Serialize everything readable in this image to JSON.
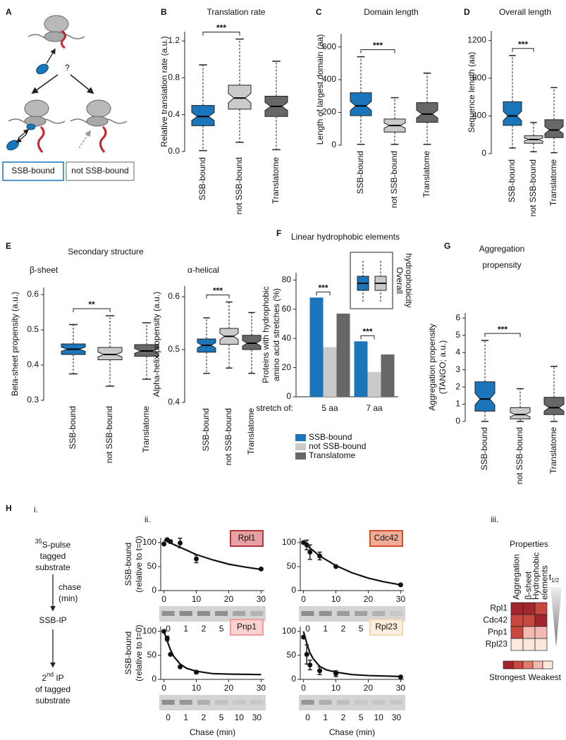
{
  "panel_labels": {
    "a": "A",
    "b": "B",
    "c": "C",
    "d": "D",
    "e": "E",
    "f": "F",
    "g": "G",
    "h": "H"
  },
  "panel_a": {
    "question": "?",
    "legend": [
      "SSB-bound",
      "not SSB-bound"
    ]
  },
  "panel_e": {
    "title": "Secondary structure"
  },
  "panel_h": {
    "steps": [
      "i.",
      "ii.",
      "iii."
    ],
    "protocol": {
      "pulse_sup": "35",
      "pulse": "S-pulse",
      "pulse_lines": [
        "tagged",
        "substrate"
      ],
      "chase": [
        "chase",
        "(min)"
      ],
      "ip": "SSB-IP",
      "second_pre": "2",
      "second_sup": "nd",
      "second": " IP",
      "second_lines": [
        "of tagged",
        "substrate"
      ]
    }
  },
  "chart_data": [
    {
      "type": "box",
      "title": [
        "Translation rate"
      ],
      "y_label": [
        "Relative translation rate (a.u.)"
      ],
      "categories": [
        "SSB-bound",
        "not SSB-bound",
        "Translatome"
      ],
      "colors": [
        "#1b75bb",
        "#cacaca",
        "#676767"
      ],
      "notch": true,
      "boxes": [
        {
          "low": 0.01,
          "q1": 0.28,
          "median": 0.38,
          "q3": 0.5,
          "high": 0.94
        },
        {
          "low": 0.1,
          "q1": 0.46,
          "median": 0.58,
          "q3": 0.72,
          "high": 1.22
        },
        {
          "low": 0.02,
          "q1": 0.38,
          "median": 0.49,
          "q3": 0.6,
          "high": 0.98
        }
      ],
      "ylim": [
        0,
        1.3
      ],
      "yticks": [
        {
          "value": 0,
          "label": "0.0"
        },
        0.4,
        0.8,
        1.2
      ],
      "significance": [
        {
          "label": "***",
          "pair": [
            0,
            1
          ]
        }
      ]
    },
    {
      "type": "box",
      "title": [
        "Domain length"
      ],
      "y_label": [
        "Length of largest domain (aa)"
      ],
      "categories": [
        "SSB-bound",
        "not SSB-bound",
        "Translatome"
      ],
      "colors": [
        "#1b75bb",
        "#cacaca",
        "#676767"
      ],
      "notch": true,
      "boxes": [
        {
          "low": 5,
          "q1": 180,
          "median": 240,
          "q3": 320,
          "high": 540
        },
        {
          "low": 5,
          "q1": 80,
          "median": 120,
          "q3": 160,
          "high": 290
        },
        {
          "low": 5,
          "q1": 140,
          "median": 190,
          "q3": 260,
          "high": 440
        }
      ],
      "ylim": [
        0,
        680
      ],
      "yticks": [
        0,
        200,
        400,
        600
      ],
      "significance": [
        {
          "label": "***",
          "pair": [
            0,
            1
          ]
        }
      ]
    },
    {
      "type": "box",
      "title": [
        "Overall length"
      ],
      "y_label": [
        "Sequence length (aa)"
      ],
      "categories": [
        "SSB-bound",
        "not SSB-bound",
        "Translatome"
      ],
      "colors": [
        "#1b75bb",
        "#cacaca",
        "#676767"
      ],
      "notch": true,
      "boxes": [
        {
          "low": 60,
          "q1": 300,
          "median": 400,
          "q3": 550,
          "high": 1040
        },
        {
          "low": 20,
          "q1": 110,
          "median": 150,
          "q3": 190,
          "high": 330
        },
        {
          "low": 10,
          "q1": 170,
          "median": 250,
          "q3": 360,
          "high": 700
        }
      ],
      "ylim": [
        0,
        1300
      ],
      "yticks": [
        0,
        400,
        800,
        1200
      ],
      "significance": [
        {
          "label": "***",
          "pair": [
            0,
            1
          ]
        }
      ]
    },
    {
      "type": "box",
      "title": [
        "β-sheet"
      ],
      "y_label": [
        "Beta-sheet propensity (a.u.)"
      ],
      "categories": [
        "SSB-bound",
        "not SSB-bound",
        "Translatome"
      ],
      "colors": [
        "#1b75bb",
        "#cacaca",
        "#676767"
      ],
      "notch": true,
      "boxes": [
        {
          "low": 0.375,
          "q1": 0.43,
          "median": 0.445,
          "q3": 0.46,
          "high": 0.515
        },
        {
          "low": 0.34,
          "q1": 0.415,
          "median": 0.43,
          "q3": 0.45,
          "high": 0.54
        },
        {
          "low": 0.36,
          "q1": 0.425,
          "median": 0.44,
          "q3": 0.458,
          "high": 0.52
        }
      ],
      "ylim": [
        0.3,
        0.62
      ],
      "yticks": [
        0.3,
        0.4,
        0.5,
        0.6
      ],
      "significance": [
        {
          "label": "**",
          "pair": [
            0,
            1
          ]
        }
      ]
    },
    {
      "type": "box",
      "title": [
        "α-helical"
      ],
      "y_label": [
        "Alpha-helix propensity (a.u.)"
      ],
      "categories": [
        "SSB-bound",
        "not SSB-bound",
        "Translatome"
      ],
      "colors": [
        "#1b75bb",
        "#cacaca",
        "#676767"
      ],
      "notch": true,
      "boxes": [
        {
          "low": 0.455,
          "q1": 0.495,
          "median": 0.508,
          "q3": 0.52,
          "high": 0.56
        },
        {
          "low": 0.465,
          "q1": 0.51,
          "median": 0.525,
          "q3": 0.54,
          "high": 0.59
        },
        {
          "low": 0.455,
          "q1": 0.5,
          "median": 0.512,
          "q3": 0.527,
          "high": 0.57
        }
      ],
      "ylim": [
        0.4,
        0.62
      ],
      "yticks": [
        0.4,
        0.5,
        0.6
      ],
      "significance": [
        {
          "label": "***",
          "pair": [
            0,
            1
          ]
        }
      ]
    },
    {
      "type": "bar",
      "title": [
        "Linear hydrophobic elements"
      ],
      "y_label": [
        "Proteins with hydrophobic",
        "amino acid stretches (%)"
      ],
      "x_label": "stretch of:",
      "categories": [
        "5 aa",
        "7 aa"
      ],
      "series": [
        {
          "name": "SSB-bound",
          "color": "#1b75bb",
          "values": [
            68,
            38
          ]
        },
        {
          "name": "not SSB-bound",
          "color": "#cacaca",
          "values": [
            34,
            17
          ]
        },
        {
          "name": "Translatome",
          "color": "#676767",
          "values": [
            57,
            29
          ]
        }
      ],
      "ylim": [
        0,
        85
      ],
      "yticks": [
        0,
        20,
        40,
        60,
        80
      ],
      "significance": [
        {
          "label": "***",
          "category": 0,
          "pair": [
            0,
            1
          ]
        },
        {
          "label": "***",
          "category": 1,
          "pair": [
            0,
            1
          ]
        }
      ],
      "inset_label": [
        "Overall",
        "hydrophobicity"
      ]
    },
    {
      "type": "box",
      "title": [
        "Aggregation",
        "propensity"
      ],
      "y_label": [
        "Aggregation propensity",
        "(TANGO; a.u.)"
      ],
      "categories": [
        "SSB-bound",
        "not SSB-bound",
        "Translatome"
      ],
      "colors": [
        "#1b75bb",
        "#cacaca",
        "#676767"
      ],
      "notch": true,
      "boxes": [
        {
          "low": 0,
          "q1": 0.6,
          "median": 1.3,
          "q3": 2.3,
          "high": 4.7
        },
        {
          "low": 0,
          "q1": 0.15,
          "median": 0.4,
          "q3": 0.8,
          "high": 1.9
        },
        {
          "low": 0,
          "q1": 0.4,
          "median": 0.8,
          "q3": 1.4,
          "high": 3.2
        }
      ],
      "ylim": [
        0,
        6.3
      ],
      "yticks": [
        0,
        1,
        2,
        3,
        4,
        5,
        6
      ],
      "significance": [
        {
          "label": "***",
          "pair": [
            0,
            1
          ]
        }
      ]
    },
    {
      "type": "decay",
      "label": "Rpl1",
      "label_fill": "#e7a1a4",
      "label_stroke": "#b8333b",
      "y_label": [
        "SSB-bound",
        "(relative to t=0)"
      ],
      "xlim": [
        -1,
        31
      ],
      "ylim": [
        0,
        110
      ],
      "xticks": [
        0,
        10,
        20,
        30
      ],
      "yticks": [
        0,
        50,
        100
      ],
      "points": {
        "x": [
          0,
          1,
          2,
          5,
          10,
          30
        ],
        "values": [
          97,
          106,
          102,
          99,
          66,
          45
        ],
        "errors": [
          null,
          null,
          3,
          10,
          8,
          null
        ]
      },
      "curve": {
        "x": [
          0,
          5,
          10,
          15,
          20,
          25,
          30
        ],
        "values": [
          105,
          90,
          75,
          64,
          55,
          49,
          44
        ]
      },
      "lanes": [
        "0",
        "1",
        "2",
        "5",
        "10",
        "30"
      ]
    },
    {
      "type": "decay",
      "label": "Cdc42",
      "label_fill": "#f0ad96",
      "label_stroke": "#d24e2c",
      "xlim": [
        -1,
        31
      ],
      "ylim": [
        0,
        110
      ],
      "xticks": [
        0,
        10,
        20,
        30
      ],
      "yticks": [
        0,
        50,
        100
      ],
      "points": {
        "x": [
          0,
          1,
          2,
          5,
          10,
          30
        ],
        "values": [
          100,
          95,
          80,
          72,
          50,
          12
        ],
        "errors": [
          null,
          10,
          15,
          8,
          null,
          null
        ]
      },
      "curve": {
        "x": [
          0,
          5,
          10,
          15,
          20,
          25,
          30
        ],
        "values": [
          100,
          72,
          52,
          37,
          26,
          18,
          12
        ]
      },
      "lanes": [
        "0",
        "1",
        "2",
        "5",
        "10",
        "30"
      ]
    },
    {
      "type": "decay",
      "label": "Pnp1",
      "label_fill": "#fbd2d2",
      "label_stroke": "#ef9d9d",
      "y_label": [
        "SSB-bound",
        "(relative to t=0)"
      ],
      "x_label": "Chase (min)",
      "xlim": [
        -1,
        31
      ],
      "ylim": [
        0,
        110
      ],
      "xticks": [
        0,
        10,
        20,
        30
      ],
      "yticks": [
        0,
        50,
        100
      ],
      "points": {
        "x": [
          0,
          1,
          2,
          5,
          10
        ],
        "values": [
          100,
          85,
          52,
          26,
          15
        ],
        "errors": [
          null,
          5,
          null,
          null,
          3
        ]
      },
      "curve": {
        "x": [
          0,
          1,
          2,
          3,
          5,
          7,
          10,
          15,
          20,
          30
        ],
        "values": [
          100,
          80,
          62,
          48,
          32,
          23,
          17,
          12,
          11,
          10
        ]
      },
      "lanes": [
        "0",
        "1",
        "2",
        "5",
        "10",
        "30"
      ]
    },
    {
      "type": "decay",
      "label": "Rpl23",
      "label_fill": "#fdeedd",
      "label_stroke": "#f1d6b4",
      "x_label": "Chase (min)",
      "xlim": [
        -1,
        31
      ],
      "ylim": [
        0,
        110
      ],
      "xticks": [
        0,
        10,
        20,
        30
      ],
      "yticks": [
        0,
        50,
        100
      ],
      "points": {
        "x": [
          0,
          1,
          2,
          5,
          10,
          30
        ],
        "values": [
          88,
          52,
          30,
          18,
          12,
          5
        ],
        "errors": [
          null,
          20,
          10,
          8,
          6,
          null
        ]
      },
      "curve": {
        "x": [
          0,
          1,
          2,
          3,
          5,
          7,
          10,
          15,
          20,
          30
        ],
        "values": [
          100,
          75,
          55,
          43,
          27,
          20,
          15,
          10,
          8,
          6
        ]
      },
      "lanes": [
        "0",
        "1",
        "2",
        "5",
        "10",
        "30"
      ]
    },
    {
      "type": "heatmap",
      "title": "Properties",
      "rows": [
        "Rpl1",
        "Cdc42",
        "Pnp1",
        "Rpl23"
      ],
      "columns": [
        [
          "Aggregation"
        ],
        [
          "β-sheet"
        ],
        [
          "Hydrophobic",
          "elements"
        ]
      ],
      "levels": [
        [
          0,
          0,
          1
        ],
        [
          1,
          1,
          0
        ],
        [
          1,
          3,
          3
        ],
        [
          4,
          4,
          4
        ]
      ],
      "scale_colors": [
        "#a3262e",
        "#c8473f",
        "#e07b6a",
        "#f4b9b0",
        "#fce8dc"
      ],
      "scale_labels": [
        "Strongest",
        "Weakest"
      ],
      "trend_label": {
        "text": "t",
        "sub": "1/2"
      }
    }
  ]
}
